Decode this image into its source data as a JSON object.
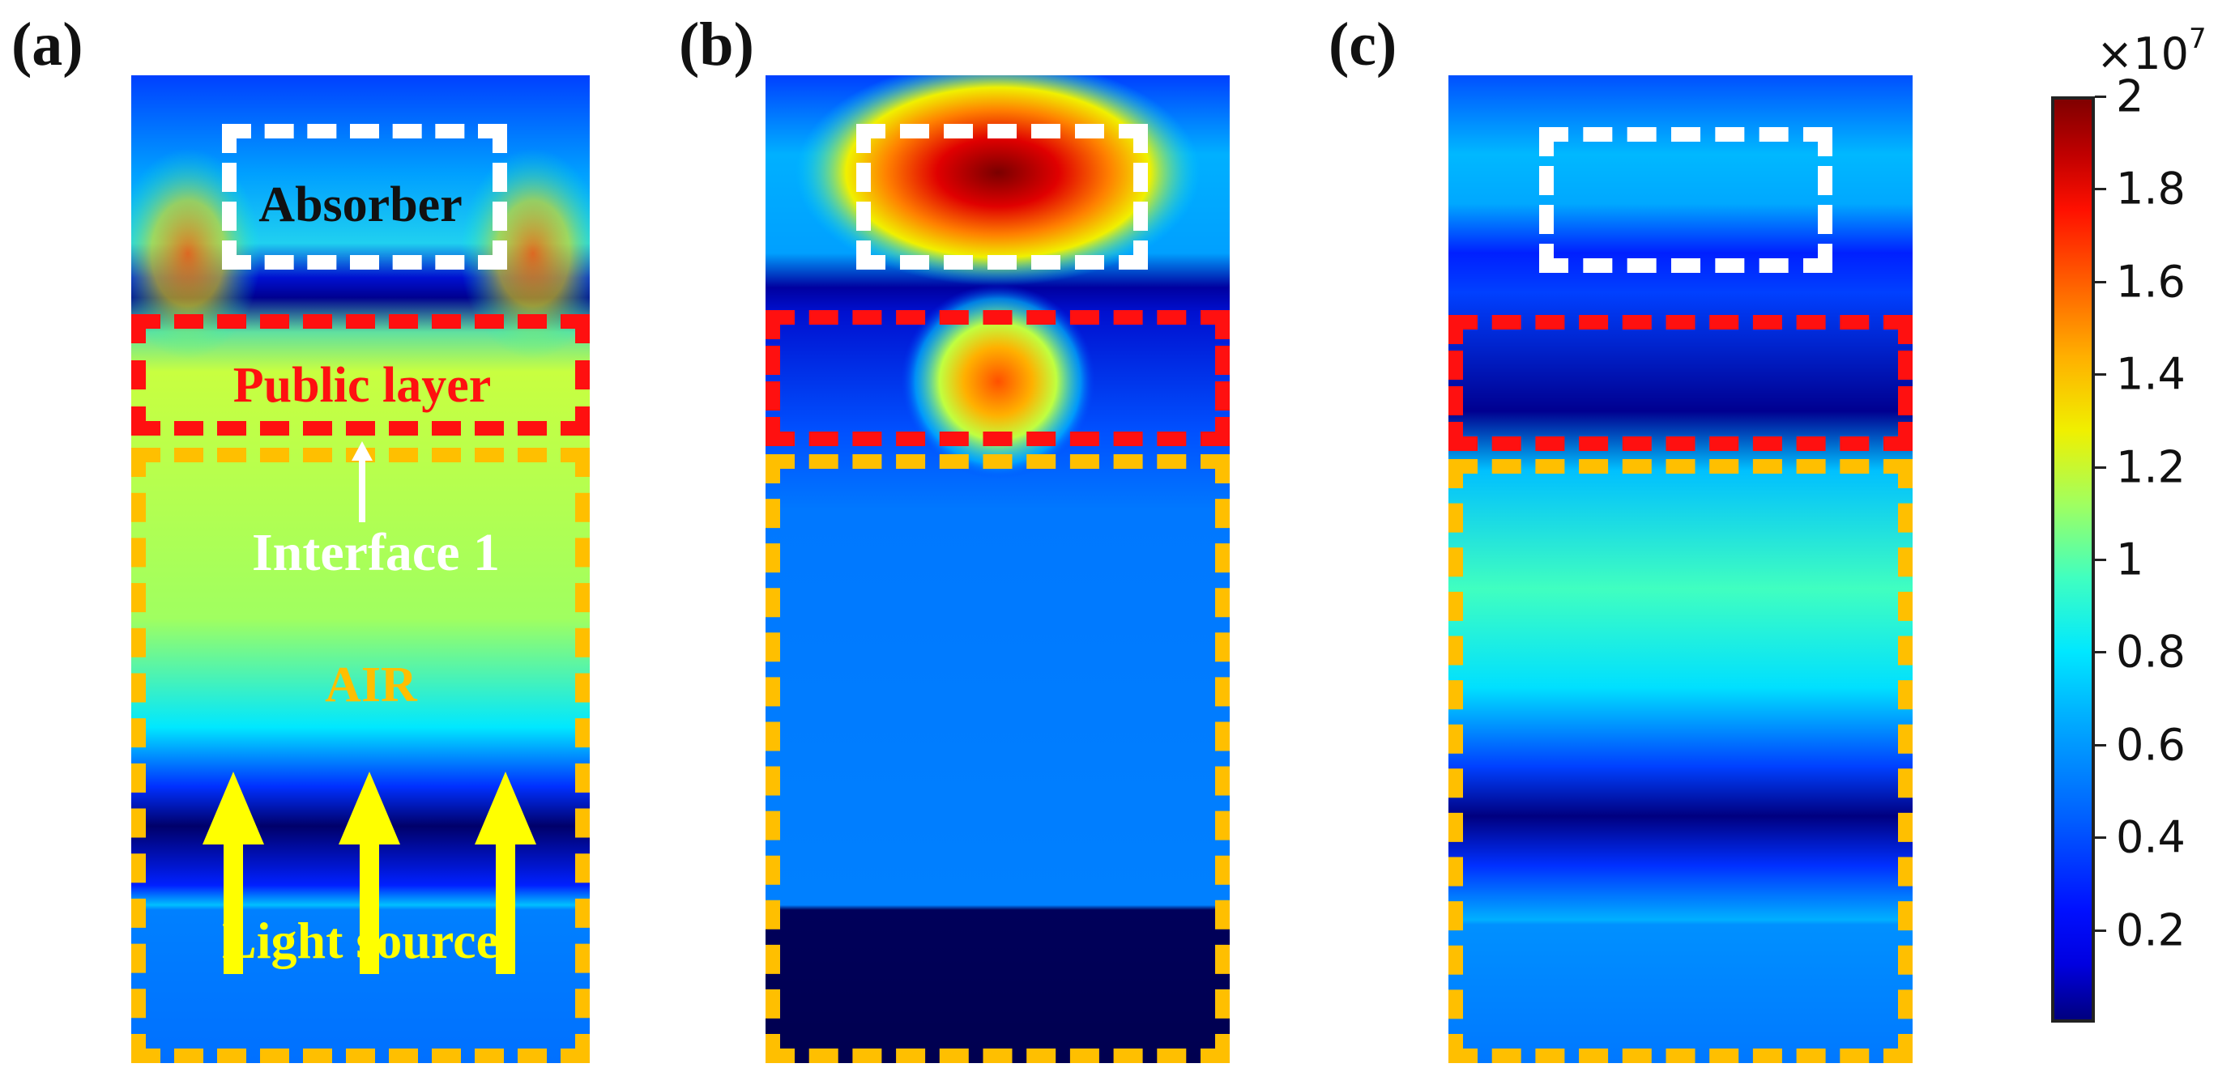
{
  "panels": [
    {
      "label": "(a)"
    },
    {
      "label": "(b)"
    },
    {
      "label": "(c)"
    }
  ],
  "annotations": {
    "absorber": "Absorber",
    "public_layer": "Public layer",
    "interface": "Interface 1",
    "air": "AIR",
    "light_source": "Light source"
  },
  "colors": {
    "absorber_box": "#ffffff",
    "public_layer_box": "#ff1010",
    "air_box": "#ffbf00",
    "absorber_text": "#111111",
    "public_layer_text": "#ff1010",
    "interface_text": "#ffffff",
    "air_text": "#ffbf00",
    "light_source_text": "#ffff00",
    "light_arrows": "#ffff00"
  },
  "colorbar": {
    "colormap": "jet",
    "min": 0,
    "max": 2,
    "multiplier_base": "×10",
    "multiplier_exponent": "7",
    "ticks": [
      {
        "value": 0.2,
        "label": "0.2"
      },
      {
        "value": 0.4,
        "label": "0.4"
      },
      {
        "value": 0.6,
        "label": "0.6"
      },
      {
        "value": 0.8,
        "label": "0.8"
      },
      {
        "value": 1.0,
        "label": "1"
      },
      {
        "value": 1.2,
        "label": "1.2"
      },
      {
        "value": 1.4,
        "label": "1.4"
      },
      {
        "value": 1.6,
        "label": "1.6"
      },
      {
        "value": 1.8,
        "label": "1.8"
      },
      {
        "value": 2.0,
        "label": "2"
      }
    ]
  }
}
